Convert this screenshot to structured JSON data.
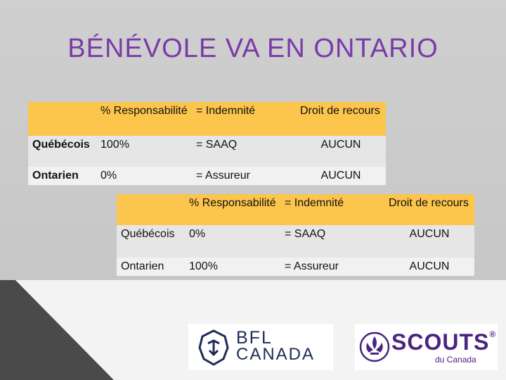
{
  "title": "BÉNÉVOLE VA EN ONTARIO",
  "table1": {
    "header": [
      "",
      "% Responsabilité",
      "= Indemnité",
      "Droit de recours"
    ],
    "rows": [
      [
        "Québécois",
        "100%",
        "= SAAQ",
        "AUCUN"
      ],
      [
        "Ontarien",
        "0%",
        "= Assureur",
        "AUCUN"
      ]
    ]
  },
  "table2": {
    "header": [
      "",
      "% Responsabilité",
      "= Indemnité",
      "Droit de recours"
    ],
    "rows": [
      [
        "Québécois",
        "0%",
        "= SAAQ",
        "AUCUN"
      ],
      [
        "Ontarien",
        "100%",
        "= Assureur",
        "AUCUN"
      ]
    ]
  },
  "logos": {
    "bfl": {
      "line1": "BFL",
      "line2": "CANADA"
    },
    "scouts": {
      "name": "SCOUTS",
      "mark": "®",
      "sub": "du Canada"
    }
  },
  "colors": {
    "title": "#7a3aa8",
    "header": "#fcc54c",
    "brand_bfl": "#1f2b57",
    "brand_scouts": "#4b2480"
  }
}
